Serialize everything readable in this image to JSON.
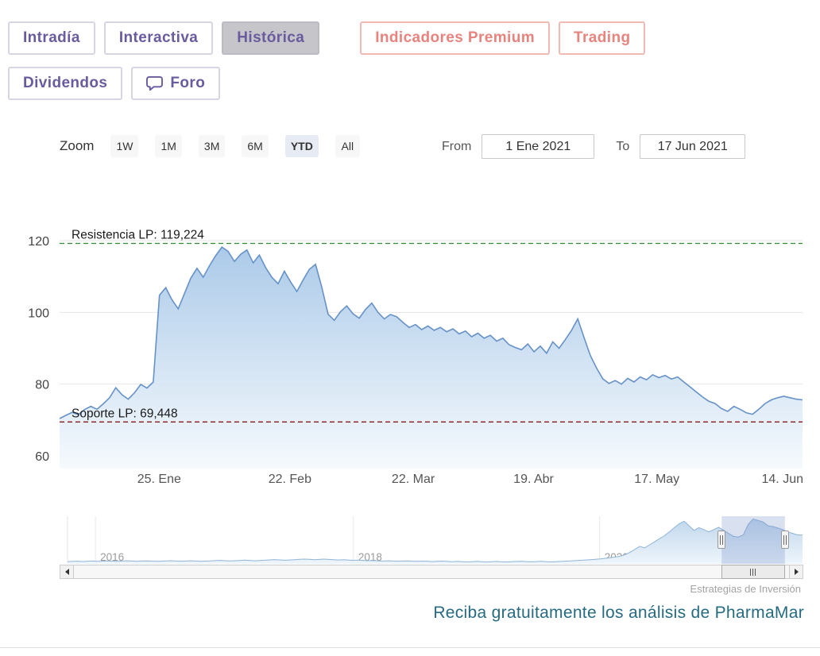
{
  "tabs": {
    "row1": [
      {
        "label": "Intradía"
      },
      {
        "label": "Interactiva"
      },
      {
        "label": "Histórica"
      },
      {
        "label": "Indicadores Premium"
      },
      {
        "label": "Trading"
      }
    ],
    "row2": [
      {
        "label": "Dividendos"
      },
      {
        "label": "Foro"
      }
    ]
  },
  "range_selector": {
    "zoom_label": "Zoom",
    "buttons": [
      "1W",
      "1M",
      "3M",
      "6M",
      "YTD",
      "All"
    ],
    "selected": "YTD",
    "from_label": "From",
    "from_value": "1 Ene 2021",
    "to_label": "To",
    "to_value": "17 Jun 2021"
  },
  "colors": {
    "tab_purple": "#6a5b9e",
    "tab_coral": "#e8837e",
    "line": "#6692c8",
    "fill_top": "#a2c4e6",
    "fill_bottom": "#f4f9fd",
    "nav_line": "#8fb4d8",
    "nav_fill_top": "#bdd5ec",
    "nav_fill_bottom": "#eef5fb",
    "resistance": "#2e8b2e",
    "support": "#8b1a1a",
    "selection_mask": "rgba(102,133,194,0.25)"
  },
  "chart_data": {
    "type": "area",
    "title": "",
    "xlabel": "",
    "ylabel": "",
    "x_range": [
      "1 Ene 2021",
      "17 Jun 2021"
    ],
    "y_axis": {
      "ticks": [
        60,
        80,
        100,
        120
      ],
      "min": 56.5,
      "max": 124.5
    },
    "x_axis": {
      "ticks": [
        {
          "label": "25. Ene",
          "pos": 0.134
        },
        {
          "label": "22. Feb",
          "pos": 0.31
        },
        {
          "label": "22. Mar",
          "pos": 0.476
        },
        {
          "label": "19. Abr",
          "pos": 0.638
        },
        {
          "label": "17. May",
          "pos": 0.804
        },
        {
          "label": "14. Jun",
          "pos": 0.973
        }
      ]
    },
    "plot_lines": [
      {
        "label": "Resistencia LP: 119,224",
        "value": 119.224,
        "color": "#2e8b2e",
        "dash": "dash"
      },
      {
        "label": "Soporte LP: 69,448",
        "value": 69.448,
        "color": "#8b1a1a",
        "dash": "dash"
      }
    ],
    "series": [
      {
        "name": "PharmaMar",
        "color": "#6692c8",
        "values": [
          70.4,
          71.3,
          72.1,
          71.5,
          72.9,
          73.8,
          73.0,
          74.5,
          76.2,
          79.0,
          77.0,
          75.8,
          77.6,
          79.9,
          78.9,
          80.6,
          104.8,
          106.9,
          103.5,
          101.0,
          105.2,
          109.5,
          112.3,
          109.8,
          113.0,
          115.8,
          118.2,
          117.0,
          114.2,
          116.2,
          117.4,
          113.8,
          116.0,
          112.5,
          109.8,
          108.0,
          111.5,
          108.5,
          105.8,
          109.0,
          112.0,
          113.4,
          107.0,
          99.5,
          97.8,
          100.2,
          101.8,
          99.6,
          98.4,
          100.8,
          102.6,
          100.0,
          98.2,
          99.4,
          98.8,
          97.2,
          95.8,
          96.6,
          95.2,
          96.2,
          95.0,
          95.8,
          94.6,
          95.4,
          94.0,
          94.8,
          93.2,
          94.2,
          92.8,
          93.6,
          92.0,
          92.8,
          91.0,
          90.2,
          89.6,
          91.2,
          89.0,
          90.6,
          88.6,
          91.8,
          90.0,
          92.4,
          95.0,
          98.2,
          93.0,
          88.0,
          84.5,
          81.5,
          80.2,
          81.0,
          80.0,
          81.6,
          80.6,
          82.0,
          81.2,
          82.6,
          81.8,
          82.4,
          81.4,
          82.0,
          80.6,
          79.2,
          77.8,
          76.4,
          75.2,
          74.6,
          73.2,
          72.4,
          73.8,
          73.0,
          72.0,
          71.6,
          73.0,
          74.6,
          75.6,
          76.2,
          76.6,
          76.2,
          75.8,
          75.6
        ]
      }
    ],
    "navigator": {
      "year_labels": [
        {
          "label": "2016",
          "pos": 0.038
        },
        {
          "label": "2018",
          "pos": 0.389
        },
        {
          "label": "2020",
          "pos": 0.724
        }
      ],
      "selection": [
        0.89,
        0.976
      ],
      "values": [
        6,
        6.5,
        7,
        6.2,
        6.8,
        7.4,
        6.6,
        7,
        7.8,
        7.2,
        6.8,
        7.6,
        8.2,
        7.4,
        6.9,
        7.5,
        8,
        7.2,
        6.6,
        7,
        7.8,
        8.4,
        7.6,
        7,
        7.6,
        8.2,
        7.4,
        6.8,
        7.2,
        7.8,
        8.6,
        9.2,
        8.4,
        7.8,
        8.4,
        9,
        9.8,
        9,
        8.2,
        8.8,
        9.6,
        10.4,
        11.2,
        10.4,
        9.6,
        10.2,
        11,
        11.8,
        12.6,
        11.8,
        11,
        11.6,
        12.4,
        11.6,
        10.8,
        10.2,
        10.8,
        10,
        9.4,
        9.8,
        9,
        8.4,
        8.8,
        8,
        7.6,
        8.2,
        7.6,
        7,
        7.4,
        7.8,
        7,
        6.6,
        7.2,
        6.6,
        6,
        6.6,
        7.2,
        6.4,
        5.8,
        6.4,
        5.8,
        5.2,
        5.8,
        6.4,
        5.6,
        5,
        5.6,
        6.2,
        5.4,
        5,
        5.6,
        6.2,
        6.8,
        6,
        5.4,
        6,
        6.6,
        5.8,
        5.2,
        5.8,
        6.4,
        7,
        7.8,
        8.6,
        9.4,
        10.2,
        11,
        12,
        13.2,
        14.6,
        16.2,
        18,
        20,
        24,
        30,
        38,
        46,
        42,
        50,
        58,
        66,
        74,
        84,
        95,
        105,
        112,
        100,
        88,
        95,
        90,
        84,
        90,
        96,
        88,
        80,
        72,
        70.5,
        76,
        104,
        118,
        114,
        110,
        100,
        98,
        94,
        90,
        84,
        80,
        76,
        75.5
      ]
    }
  },
  "footer": {
    "watermark": "Estrategias de Inversión",
    "promo": "Reciba gratuitamente los análisis de PharmaMar"
  }
}
